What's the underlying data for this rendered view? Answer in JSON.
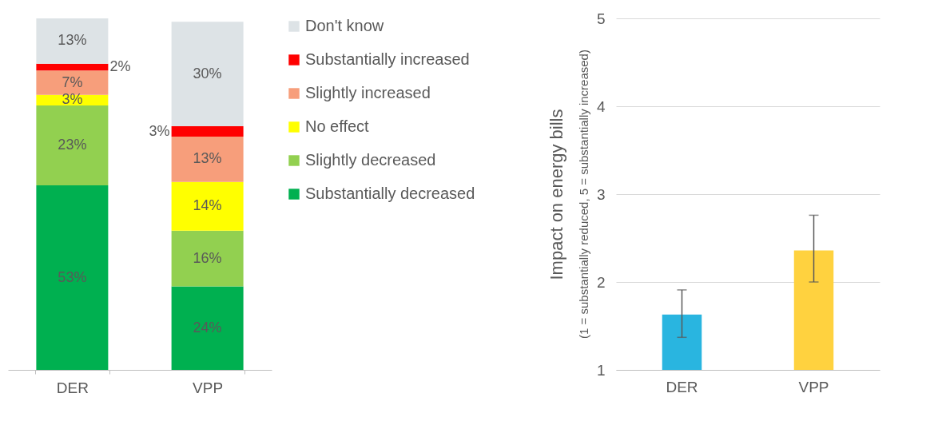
{
  "chart_data": [
    {
      "type": "bar",
      "stacked": true,
      "categories": [
        "DER",
        "VPP"
      ],
      "legend": "right",
      "series": [
        {
          "name": "Substantially decreased",
          "color": "#00b050",
          "values": [
            53,
            24
          ],
          "value_labels": [
            "53%",
            "24%"
          ]
        },
        {
          "name": "Slightly decreased",
          "color": "#92d050",
          "values": [
            23,
            16
          ],
          "value_labels": [
            "23%",
            "16%"
          ]
        },
        {
          "name": "No effect",
          "color": "#ffff00",
          "values": [
            3,
            14
          ],
          "value_labels": [
            "3%",
            "14%"
          ]
        },
        {
          "name": "Slightly increased",
          "color": "#f79e7b",
          "values": [
            7,
            13
          ],
          "value_labels": [
            "7%",
            "13%"
          ]
        },
        {
          "name": "Substantially increased",
          "color": "#ff0000",
          "values": [
            2,
            3
          ],
          "value_labels": [
            "2%",
            "3%"
          ]
        },
        {
          "name": "Don't know",
          "color": "#dde3e6",
          "values": [
            13,
            30
          ],
          "value_labels": [
            "13%",
            "30%"
          ]
        }
      ]
    },
    {
      "type": "bar",
      "categories": [
        "DER",
        "VPP"
      ],
      "values": [
        1.63,
        2.36
      ],
      "colors": [
        "#29b5e0",
        "#ffd23f"
      ],
      "errors": [
        [
          1.37,
          1.91
        ],
        [
          2.0,
          2.76
        ]
      ],
      "ylabel": "Impact on energy bills",
      "annotations": [
        "(1 = substantially reduced, 5 = substantially increased)"
      ],
      "ylim": [
        1,
        5
      ],
      "yticks": [
        1,
        2,
        3,
        4,
        5
      ],
      "grid": "y"
    }
  ]
}
